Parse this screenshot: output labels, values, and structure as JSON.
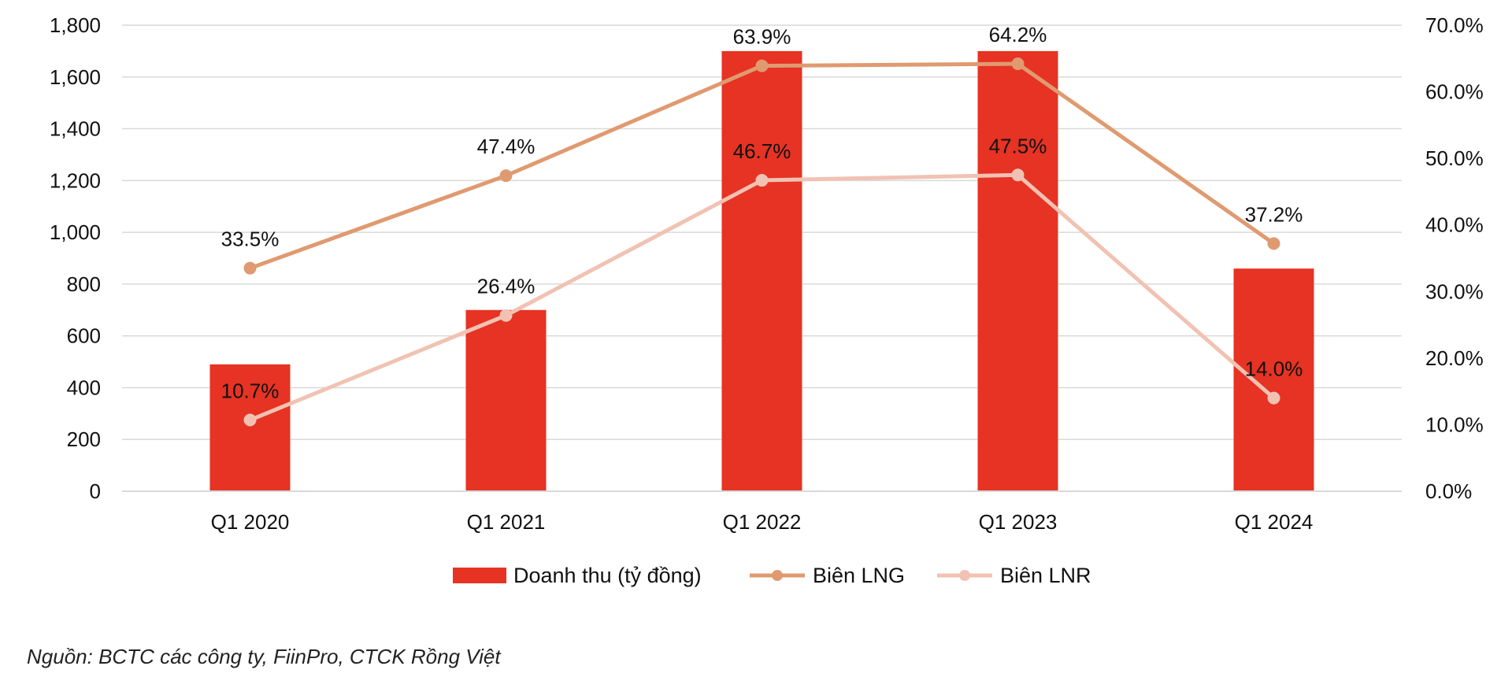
{
  "chart_data": {
    "type": "bar",
    "categories": [
      "Q1 2020",
      "Q1 2021",
      "Q1 2022",
      "Q1 2023",
      "Q1 2024"
    ],
    "series": [
      {
        "name": "Doanh thu (tỷ đồng)",
        "type": "bar",
        "axis": "left",
        "values": [
          490,
          700,
          1700,
          1700,
          860
        ]
      },
      {
        "name": "Biên LNG",
        "type": "line",
        "axis": "right",
        "values": [
          33.5,
          47.4,
          63.9,
          64.2,
          37.2
        ],
        "labels": [
          "33.5%",
          "47.4%",
          "63.9%",
          "64.2%",
          "37.2%"
        ]
      },
      {
        "name": "Biên LNR",
        "type": "line",
        "axis": "right",
        "values": [
          10.7,
          26.4,
          46.7,
          47.5,
          14.0
        ],
        "labels": [
          "10.7%",
          "26.4%",
          "46.7%",
          "47.5%",
          "14.0%"
        ]
      }
    ],
    "left_axis": {
      "ylim": [
        0,
        1800
      ],
      "ticks": [
        0,
        200,
        400,
        600,
        800,
        1000,
        1200,
        1400,
        1600,
        1800
      ],
      "tick_labels": [
        "0",
        "200",
        "400",
        "600",
        "800",
        "1,000",
        "1,200",
        "1,400",
        "1,600",
        "1,800"
      ]
    },
    "right_axis": {
      "ylim": [
        0,
        70
      ],
      "ticks": [
        0,
        10,
        20,
        30,
        40,
        50,
        60,
        70
      ],
      "tick_labels": [
        "0.0%",
        "10.0%",
        "20.0%",
        "30.0%",
        "40.0%",
        "50.0%",
        "60.0%",
        "70.0%"
      ]
    },
    "grid": true,
    "legend_position": "bottom",
    "colors": {
      "bar": "#e63323",
      "lng": "#e09a70",
      "lnr": "#f1c2b3",
      "grid": "#d9d9d9"
    }
  },
  "source": "Nguồn: BCTC các công ty, FiinPro, CTCK Rồng Việt"
}
